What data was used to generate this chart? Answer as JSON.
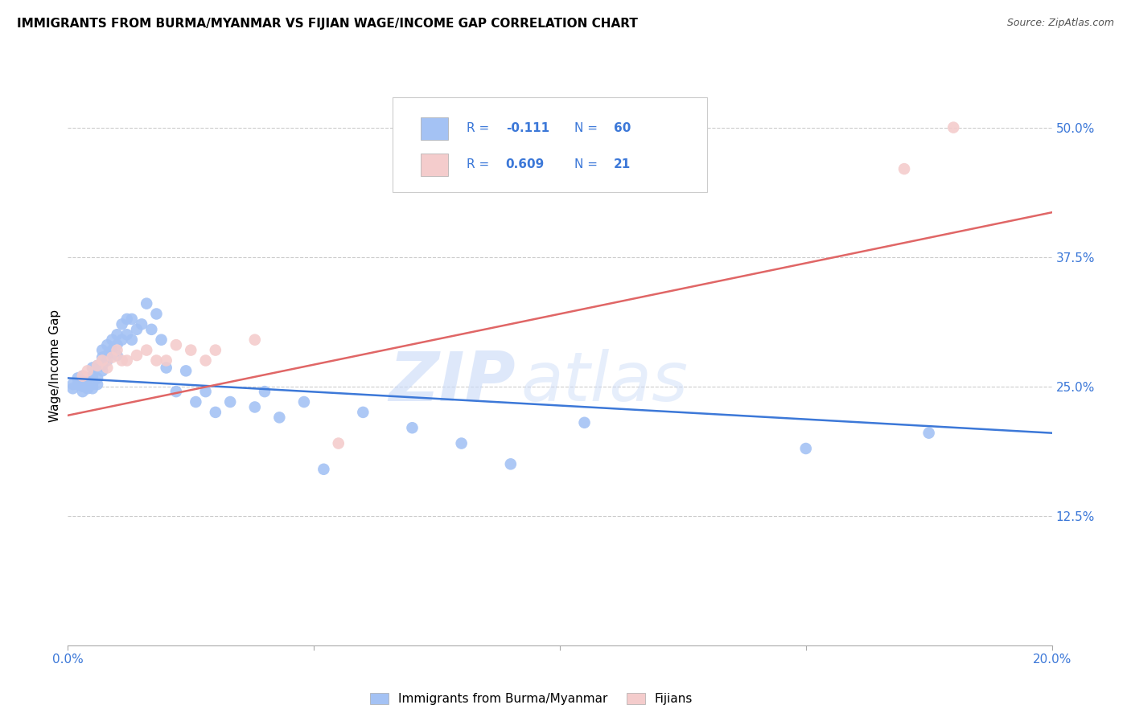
{
  "title": "IMMIGRANTS FROM BURMA/MYANMAR VS FIJIAN WAGE/INCOME GAP CORRELATION CHART",
  "source": "Source: ZipAtlas.com",
  "ylabel": "Wage/Income Gap",
  "xlim": [
    0.0,
    0.2
  ],
  "ylim": [
    0.0,
    0.54
  ],
  "yticks_right": [
    0.125,
    0.25,
    0.375,
    0.5
  ],
  "ytick_labels_right": [
    "12.5%",
    "25.0%",
    "37.5%",
    "50.0%"
  ],
  "blue_color": "#a4c2f4",
  "pink_color": "#f4cccc",
  "blue_line_color": "#3c78d8",
  "pink_line_color": "#e06666",
  "text_color": "#3c78d8",
  "legend_r_blue": "-0.111",
  "legend_n_blue": "60",
  "legend_r_pink": "0.609",
  "legend_n_pink": "21",
  "blue_scatter_x": [
    0.001,
    0.001,
    0.002,
    0.002,
    0.003,
    0.003,
    0.003,
    0.004,
    0.004,
    0.004,
    0.005,
    0.005,
    0.005,
    0.005,
    0.006,
    0.006,
    0.006,
    0.007,
    0.007,
    0.007,
    0.007,
    0.008,
    0.008,
    0.008,
    0.009,
    0.009,
    0.01,
    0.01,
    0.01,
    0.011,
    0.011,
    0.012,
    0.012,
    0.013,
    0.013,
    0.014,
    0.015,
    0.016,
    0.017,
    0.018,
    0.019,
    0.02,
    0.022,
    0.024,
    0.026,
    0.028,
    0.03,
    0.033,
    0.038,
    0.04,
    0.043,
    0.048,
    0.052,
    0.06,
    0.07,
    0.08,
    0.09,
    0.105,
    0.15,
    0.175
  ],
  "blue_scatter_y": [
    0.248,
    0.252,
    0.252,
    0.258,
    0.245,
    0.25,
    0.26,
    0.248,
    0.25,
    0.258,
    0.248,
    0.252,
    0.26,
    0.268,
    0.252,
    0.258,
    0.27,
    0.265,
    0.27,
    0.278,
    0.285,
    0.275,
    0.28,
    0.29,
    0.285,
    0.295,
    0.28,
    0.29,
    0.3,
    0.295,
    0.31,
    0.3,
    0.315,
    0.295,
    0.315,
    0.305,
    0.31,
    0.33,
    0.305,
    0.32,
    0.295,
    0.268,
    0.245,
    0.265,
    0.235,
    0.245,
    0.225,
    0.235,
    0.23,
    0.245,
    0.22,
    0.235,
    0.17,
    0.225,
    0.21,
    0.195,
    0.175,
    0.215,
    0.19,
    0.205
  ],
  "pink_scatter_x": [
    0.003,
    0.004,
    0.006,
    0.007,
    0.008,
    0.009,
    0.01,
    0.011,
    0.012,
    0.014,
    0.016,
    0.018,
    0.02,
    0.022,
    0.025,
    0.028,
    0.03,
    0.038,
    0.055,
    0.17,
    0.18
  ],
  "pink_scatter_y": [
    0.26,
    0.265,
    0.27,
    0.275,
    0.268,
    0.278,
    0.285,
    0.275,
    0.275,
    0.28,
    0.285,
    0.275,
    0.275,
    0.29,
    0.285,
    0.275,
    0.285,
    0.295,
    0.195,
    0.46,
    0.5
  ],
  "blue_trend_x": [
    0.0,
    0.2
  ],
  "blue_trend_y": [
    0.258,
    0.205
  ],
  "pink_trend_x": [
    0.0,
    0.2
  ],
  "pink_trend_y": [
    0.222,
    0.418
  ]
}
